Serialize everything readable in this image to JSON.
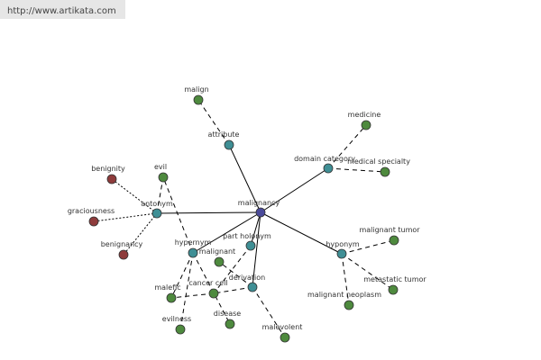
{
  "header": {
    "url": "http://www.artikata.com"
  },
  "nodes": [
    {
      "label": "malignancy"
    },
    {
      "label": "attribute"
    },
    {
      "label": "domain category"
    },
    {
      "label": "antonym"
    },
    {
      "label": "hypernym"
    },
    {
      "label": "part holonym"
    },
    {
      "label": "derivation"
    },
    {
      "label": "hyponym"
    },
    {
      "label": "malign"
    },
    {
      "label": "medicine"
    },
    {
      "label": "medical specialty"
    },
    {
      "label": "benignity"
    },
    {
      "label": "evil"
    },
    {
      "label": "graciousness"
    },
    {
      "label": "benignancy"
    },
    {
      "label": "malignant"
    },
    {
      "label": "cancer cell"
    },
    {
      "label": "malefic"
    },
    {
      "label": "evilness"
    },
    {
      "label": "disease"
    },
    {
      "label": "malevolent"
    },
    {
      "label": "malignant tumor"
    },
    {
      "label": "metastatic tumor"
    },
    {
      "label": "malignant neoplasm"
    }
  ]
}
